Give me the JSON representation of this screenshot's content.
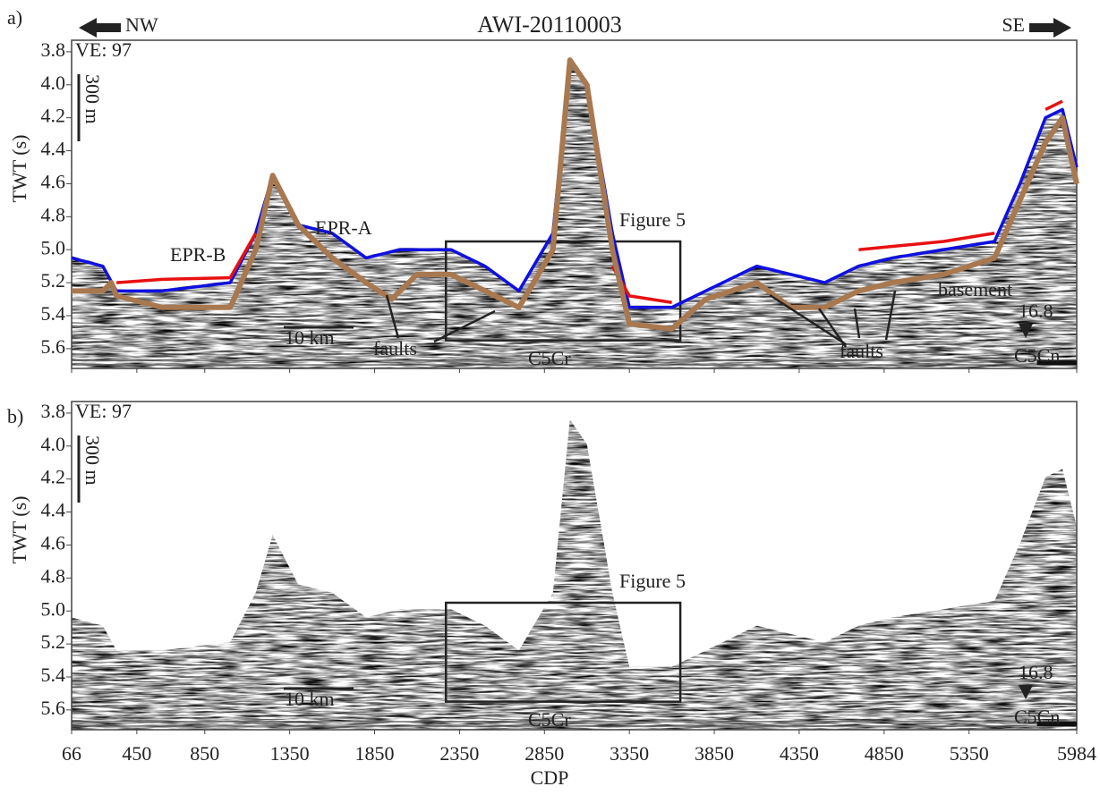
{
  "chart_data": [
    {
      "type": "line",
      "panel_label": "a)",
      "title": "AWI-20110003",
      "left_direction": "NW",
      "right_direction": "SE",
      "ylabel": "TWT (s)",
      "ylim": [
        3.73,
        5.72
      ],
      "yticks": [
        {
          "value": 3.8,
          "label": "3.8"
        },
        {
          "value": 4.0,
          "label": "4.0"
        },
        {
          "value": 4.2,
          "label": "4.2"
        },
        {
          "value": 4.4,
          "label": "4.4"
        },
        {
          "value": 4.6,
          "label": "4.6"
        },
        {
          "value": 4.8,
          "label": "4.8"
        },
        {
          "value": 5.0,
          "label": "5.0"
        },
        {
          "value": 5.2,
          "label": "5.2"
        },
        {
          "value": 5.4,
          "label": "5.4"
        },
        {
          "value": 5.6,
          "label": "5.6"
        }
      ],
      "xlim": [
        66,
        5984
      ],
      "series": [
        {
          "name": "EPR-A",
          "color": "#1010e0",
          "x": [
            66,
            250,
            330,
            600,
            1000,
            1150,
            1250,
            1400,
            1600,
            1800,
            2000,
            2300,
            2500,
            2700,
            2900,
            3000,
            3100,
            3250,
            3350,
            3600,
            3800,
            4100,
            4300,
            4500,
            4700,
            4900,
            5200,
            5500,
            5650,
            5800,
            5900,
            5984
          ],
          "values": [
            5.05,
            5.1,
            5.25,
            5.25,
            5.2,
            4.9,
            4.55,
            4.85,
            4.9,
            5.05,
            5.0,
            5.0,
            5.1,
            5.25,
            4.9,
            3.85,
            4.0,
            4.9,
            5.35,
            5.35,
            5.25,
            5.1,
            5.15,
            5.2,
            5.1,
            5.05,
            5.0,
            4.95,
            4.6,
            4.2,
            4.15,
            4.5
          ]
        },
        {
          "name": "EPR-B",
          "color": "#e81010",
          "x": [
            66,
            250,
            330,
            600,
            1000,
            1150,
            1250,
            1400,
            1600,
            1800,
            2000,
            2300,
            2500,
            2700,
            2900,
            3000,
            3100,
            3250,
            3350,
            3600,
            3800,
            4100,
            4300,
            4500,
            4700,
            4900,
            5200,
            5500,
            5650,
            5800,
            5900,
            5984
          ],
          "values": [
            null,
            null,
            5.2,
            5.18,
            5.17,
            4.9,
            null,
            null,
            null,
            null,
            null,
            null,
            null,
            null,
            null,
            null,
            null,
            5.1,
            5.28,
            5.32,
            null,
            null,
            null,
            null,
            5.0,
            4.98,
            4.95,
            4.9,
            null,
            4.15,
            4.1,
            null
          ]
        },
        {
          "name": "basement",
          "color": "#a87850",
          "x": [
            66,
            250,
            300,
            330,
            600,
            1000,
            1150,
            1250,
            1400,
            1600,
            1800,
            1950,
            2100,
            2300,
            2500,
            2700,
            2900,
            3000,
            3100,
            3250,
            3350,
            3600,
            3800,
            4100,
            4300,
            4500,
            4700,
            4900,
            5200,
            5500,
            5650,
            5800,
            5900,
            5984
          ],
          "values": [
            5.25,
            5.25,
            5.2,
            5.28,
            5.35,
            5.35,
            5.0,
            4.55,
            4.85,
            5.05,
            5.2,
            5.3,
            5.15,
            5.15,
            5.25,
            5.35,
            5.0,
            3.85,
            4.0,
            5.0,
            5.45,
            5.48,
            5.3,
            5.2,
            5.35,
            5.35,
            5.25,
            5.2,
            5.15,
            5.05,
            4.7,
            4.35,
            4.2,
            4.6
          ]
        }
      ],
      "figure5_box": {
        "x": [
          2270,
          3650
        ],
        "y": [
          4.95,
          5.55
        ]
      },
      "annotations": [
        "VE: 97",
        "300 m",
        "10 km",
        "faults",
        "faults",
        "Figure 5",
        "C5Cr",
        "C5Cn",
        "16.8"
      ]
    },
    {
      "type": "seismic",
      "panel_label": "b)",
      "ylabel": "TWT (s)",
      "xlabel": "CDP",
      "ylim": [
        3.73,
        5.72
      ],
      "yticks": [
        {
          "value": 3.8,
          "label": "3.8"
        },
        {
          "value": 4.0,
          "label": "4.0"
        },
        {
          "value": 4.2,
          "label": "4.2"
        },
        {
          "value": 4.4,
          "label": "4.4"
        },
        {
          "value": 4.6,
          "label": "4.6"
        },
        {
          "value": 4.8,
          "label": "4.8"
        },
        {
          "value": 5.0,
          "label": "5.0"
        },
        {
          "value": 5.2,
          "label": "5.2"
        },
        {
          "value": 5.4,
          "label": "5.4"
        },
        {
          "value": 5.6,
          "label": "5.6"
        }
      ],
      "xlim": [
        66,
        5984
      ],
      "xticks": [
        66,
        450,
        850,
        1350,
        1850,
        2350,
        2850,
        3350,
        3850,
        4350,
        4850,
        5350,
        5984
      ],
      "figure5_box": {
        "x": [
          2270,
          3650
        ],
        "y": [
          4.95,
          5.55
        ]
      },
      "annotations": [
        "VE: 97",
        "300 m",
        "10 km",
        "Figure 5",
        "C5Cr",
        "C5Cn",
        "16.8"
      ]
    }
  ]
}
